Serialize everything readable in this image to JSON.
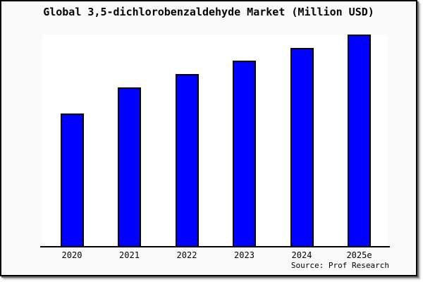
{
  "chart_data": {
    "type": "bar",
    "title": "Global 3,5-dichlorobenzaldehyde Market (Million USD)",
    "xlabel": "",
    "ylabel": "",
    "unit": "Million USD",
    "categories": [
      "2020",
      "2021",
      "2022",
      "2023",
      "2024",
      "2025e"
    ],
    "values_relative_pct": [
      62.7,
      75.0,
      81.5,
      87.8,
      93.7,
      100.0
    ],
    "y_axis_labels_visible": false,
    "gridlines": false,
    "legend": "none",
    "source": "Source: Prof Research",
    "bar_color": "#0000ff",
    "bar_border_color": "#000000",
    "plot_background": "#ffffff",
    "figure_background": "#fafafa"
  }
}
